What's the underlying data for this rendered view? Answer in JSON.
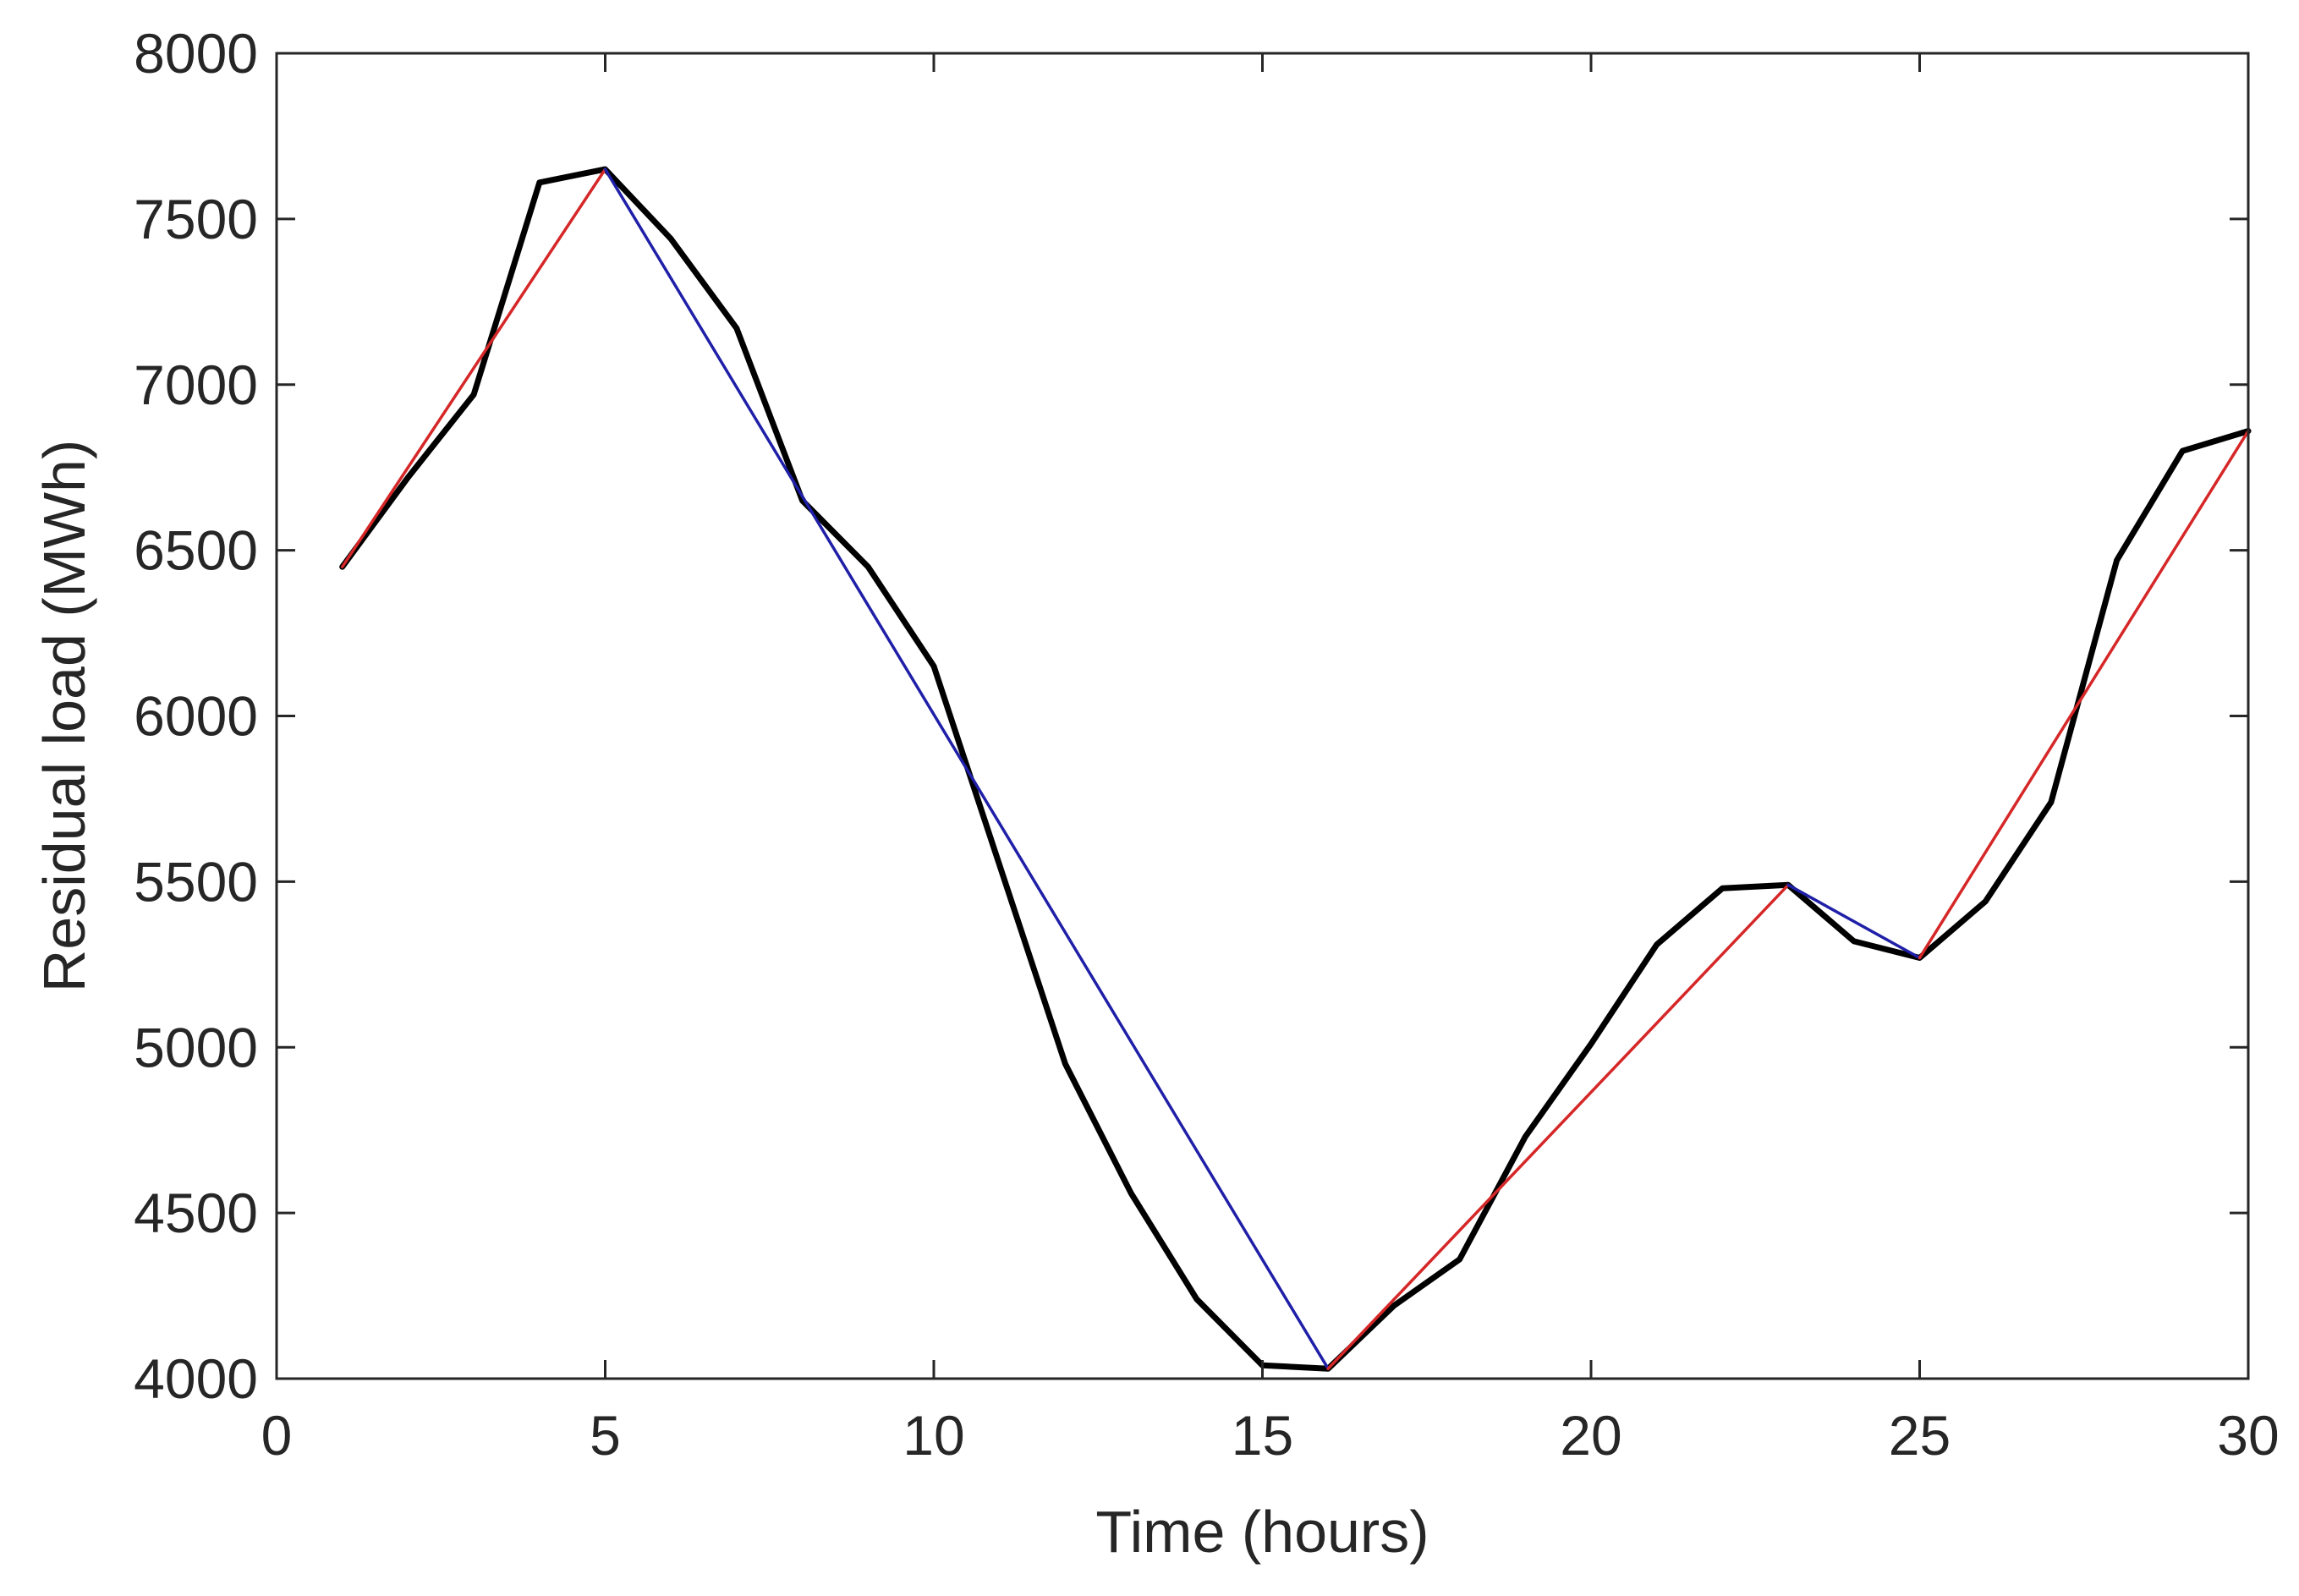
{
  "chart_data": {
    "type": "line",
    "title": "",
    "xlabel": "Time (hours)",
    "ylabel": "Residual load (MWh)",
    "xlim": [
      0,
      30
    ],
    "ylim": [
      4000,
      8000
    ],
    "xticks": [
      0,
      5,
      10,
      15,
      20,
      25,
      30
    ],
    "yticks": [
      4000,
      4500,
      5000,
      5500,
      6000,
      6500,
      7000,
      7500,
      8000
    ],
    "grid": false,
    "legend": "none",
    "colors": {
      "residual": "#000000",
      "rising": "#d62728",
      "falling": "#1f1fa8",
      "axis": "#262626"
    },
    "series": [
      {
        "role": "residual",
        "x": [
          1,
          2,
          3,
          4,
          5,
          6,
          7,
          8,
          9,
          10,
          11,
          12,
          13,
          14,
          15,
          16,
          17,
          18,
          19,
          20,
          21,
          22,
          23,
          24,
          25,
          26,
          27,
          28,
          29,
          30
        ],
        "y": [
          6450,
          6720,
          6970,
          7610,
          7650,
          7440,
          7170,
          6650,
          6450,
          6150,
          5550,
          4950,
          4560,
          4240,
          4040,
          4030,
          4220,
          4360,
          4730,
          5010,
          5310,
          5480,
          5490,
          5320,
          5270,
          5440,
          5740,
          6470,
          6800,
          6860
        ]
      },
      {
        "role": "rising",
        "x": [
          1,
          5
        ],
        "y": [
          6450,
          7650
        ]
      },
      {
        "role": "falling",
        "x": [
          5,
          16
        ],
        "y": [
          7650,
          4030
        ]
      },
      {
        "role": "rising",
        "x": [
          16,
          23
        ],
        "y": [
          4030,
          5490
        ]
      },
      {
        "role": "falling",
        "x": [
          23,
          25
        ],
        "y": [
          5490,
          5270
        ]
      },
      {
        "role": "rising",
        "x": [
          25,
          30
        ],
        "y": [
          5270,
          6860
        ]
      }
    ]
  }
}
